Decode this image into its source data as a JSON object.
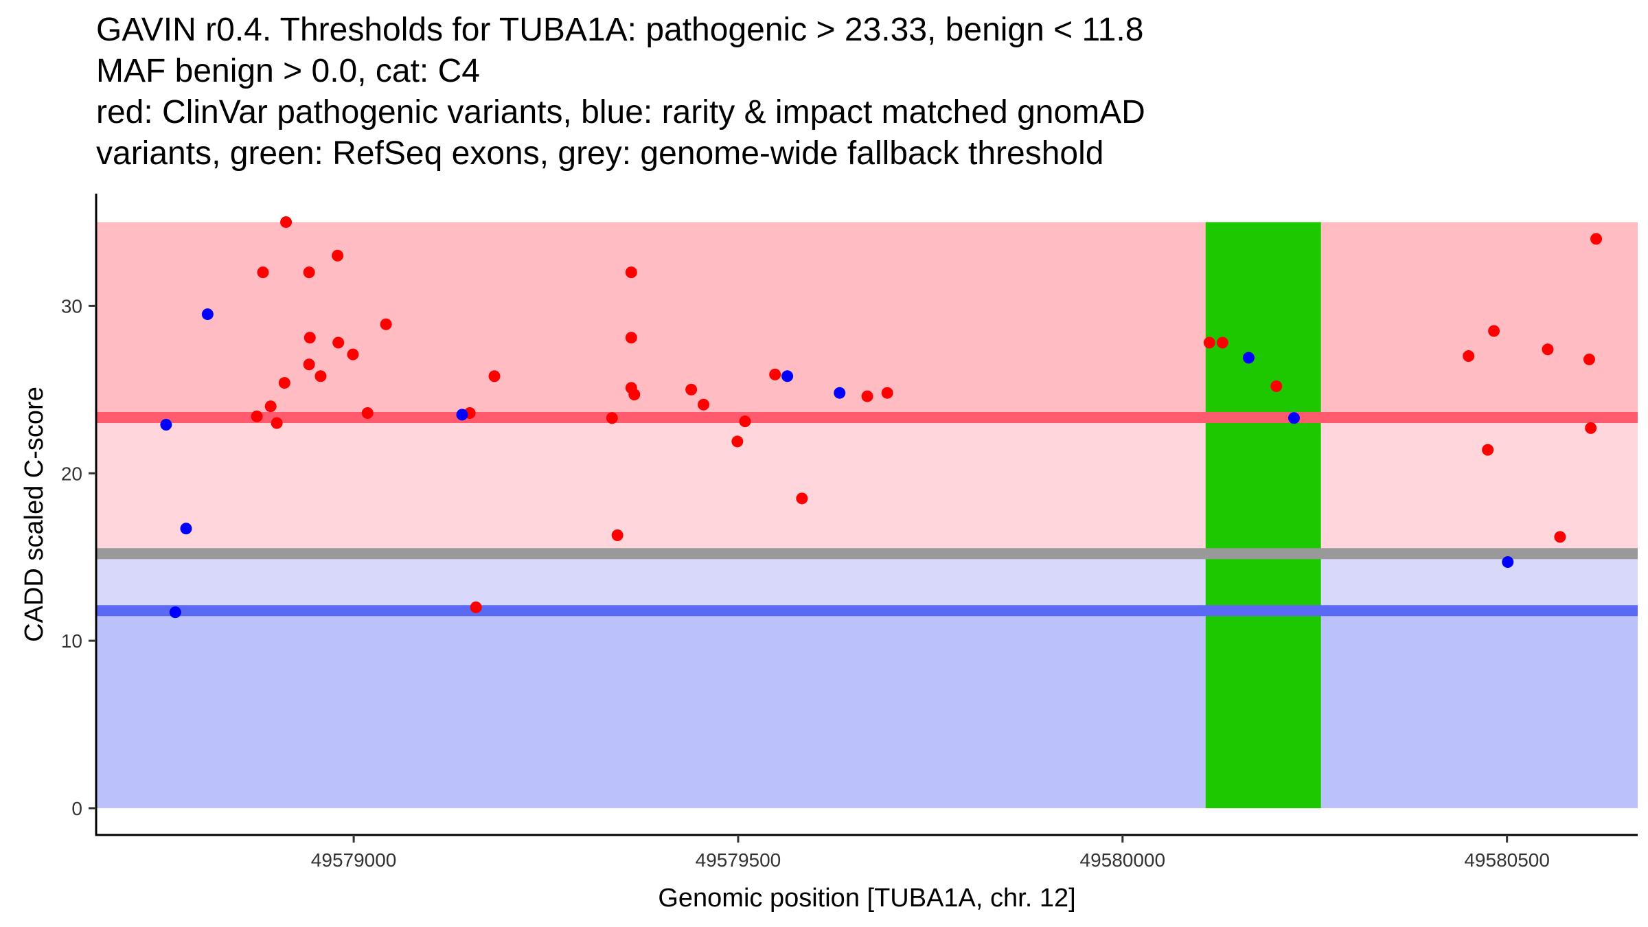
{
  "chart_data": {
    "type": "scatter",
    "title_lines": [
      "GAVIN r0.4. Thresholds for TUBA1A: pathogenic > 23.33, benign < 11.8",
      "MAF benign > 0.0, cat: C4",
      "red: ClinVar pathogenic variants, blue: rarity & impact matched gnomAD",
      "variants, green: RefSeq exons, grey: genome-wide fallback threshold"
    ],
    "xlabel": "Genomic position [TUBA1A, chr. 12]",
    "ylabel": "CADD scaled C-score",
    "xlim": [
      49578665,
      49580670
    ],
    "ylim": [
      -1.6,
      36.7
    ],
    "x_ticks": [
      49579000,
      49579500,
      49580000,
      49580500
    ],
    "x_tick_labels": [
      "49579000",
      "49579500",
      "49580000",
      "49580500"
    ],
    "y_ticks": [
      0,
      10,
      20,
      30
    ],
    "y_tick_labels": [
      "0",
      "10",
      "20",
      "30"
    ],
    "x_data_start": 49578665,
    "thresholds": {
      "pathogenic": 23.33,
      "benign": 11.8,
      "fallback": 15.2,
      "max_score": 35.0
    },
    "colors": {
      "pathogenic": "#ff0000",
      "gnomad": "#0000ff",
      "exon": "#1ec800",
      "pathogenic_zone": "#ffbcc2",
      "mid_zone": "#ffd6dc",
      "low_mid_zone": "#d8d8fa",
      "benign_zone": "#bbc1fa",
      "pathogenic_line": "#ff5a6e",
      "benign_line": "#5a6af5",
      "fallback_line": "#999999"
    },
    "exons": [
      {
        "start": 49580108,
        "end": 49580258
      }
    ],
    "series": [
      {
        "name": "ClinVar pathogenic variants",
        "color": "#ff0000",
        "points": [
          [
            49578912,
            35.0
          ],
          [
            49578882,
            32.0
          ],
          [
            49578942,
            32.0
          ],
          [
            49578979,
            33.0
          ],
          [
            49579042,
            28.9
          ],
          [
            49578943,
            28.1
          ],
          [
            49578980,
            27.8
          ],
          [
            49578999,
            27.1
          ],
          [
            49578942,
            26.5
          ],
          [
            49578957,
            25.8
          ],
          [
            49578910,
            25.4
          ],
          [
            49578892,
            24.0
          ],
          [
            49578874,
            23.4
          ],
          [
            49578900,
            23.0
          ],
          [
            49579018,
            23.6
          ],
          [
            49579151,
            23.6
          ],
          [
            49579183,
            25.8
          ],
          [
            49579159,
            12.0
          ],
          [
            49579361,
            32.0
          ],
          [
            49579361,
            28.1
          ],
          [
            49579361,
            25.1
          ],
          [
            49579365,
            24.7
          ],
          [
            49579336,
            23.3
          ],
          [
            49579343,
            16.3
          ],
          [
            49579439,
            25.0
          ],
          [
            49579455,
            24.1
          ],
          [
            49579499,
            21.9
          ],
          [
            49579509,
            23.1
          ],
          [
            49579548,
            25.9
          ],
          [
            49579583,
            18.5
          ],
          [
            49579668,
            24.6
          ],
          [
            49579694,
            24.8
          ],
          [
            49580113,
            27.8
          ],
          [
            49580130,
            27.8
          ],
          [
            49580200,
            25.2
          ],
          [
            49580450,
            27.0
          ],
          [
            49580475,
            21.4
          ],
          [
            49580483,
            28.5
          ],
          [
            49580553,
            27.4
          ],
          [
            49580569,
            16.2
          ],
          [
            49580607,
            26.8
          ],
          [
            49580609,
            22.7
          ],
          [
            49580616,
            34.0
          ]
        ]
      },
      {
        "name": "rarity & impact matched gnomAD variants",
        "color": "#0000ff",
        "points": [
          [
            49578756,
            22.9
          ],
          [
            49578768,
            11.7
          ],
          [
            49578782,
            16.7
          ],
          [
            49578810,
            29.5
          ],
          [
            49579141,
            23.5
          ],
          [
            49579564,
            25.8
          ],
          [
            49579632,
            24.8
          ],
          [
            49580164,
            26.9
          ],
          [
            49580223,
            23.3
          ],
          [
            49580501,
            14.7
          ]
        ]
      }
    ]
  }
}
